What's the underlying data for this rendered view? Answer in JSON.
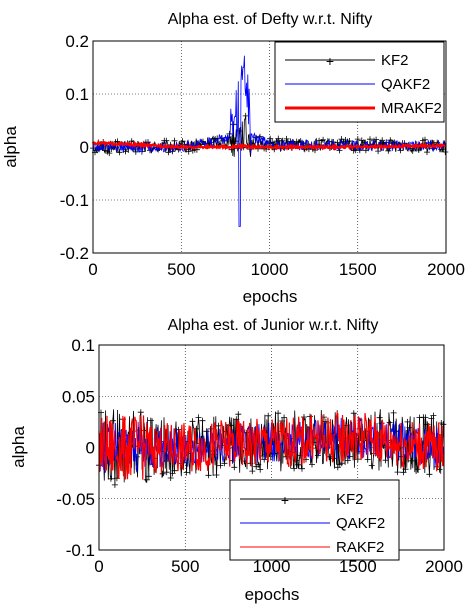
{
  "chart_data": [
    {
      "type": "line",
      "title": "Alpha est. of Defty w.r.t. Nifty",
      "xlabel": "epochs",
      "ylabel": "alpha",
      "xlim": [
        0,
        2000
      ],
      "ylim": [
        -0.2,
        0.2
      ],
      "xticks": [
        "0",
        "500",
        "1000",
        "1500",
        "2000"
      ],
      "yticks": [
        "0.2",
        "0.1",
        "0",
        "-0.1",
        "-0.2"
      ],
      "grid": true,
      "legend_position": "top-right",
      "series": [
        {
          "name": "KF2",
          "color": "#000000",
          "marker": "plus",
          "x": [
            0,
            500,
            800,
            850,
            900,
            1000,
            1500,
            2000
          ],
          "values": [
            0.0,
            0.0,
            0.015,
            0.03,
            0.01,
            0.005,
            0.003,
            0.002
          ],
          "noise_envelope": 0.012
        },
        {
          "name": "QAKF2",
          "color": "#0000ff",
          "x": [
            0,
            500,
            800,
            850,
            900,
            1000,
            1500,
            2000
          ],
          "values": [
            0.0,
            0.0,
            0.02,
            0.15,
            0.02,
            0.005,
            0.003,
            0.002
          ],
          "noise_envelope": 0.01
        },
        {
          "name": "MRAKF2",
          "color": "#ff0000",
          "x": [
            0,
            500,
            800,
            850,
            900,
            1000,
            1500,
            2000
          ],
          "values": [
            0.008,
            0.0,
            0.0,
            0.002,
            0.0,
            0.0,
            0.0,
            0.003
          ]
        }
      ]
    },
    {
      "type": "line",
      "title": "Alpha est. of Junior w.r.t. Nifty",
      "xlabel": "epochs",
      "ylabel": "alpha",
      "xlim": [
        0,
        2000
      ],
      "ylim": [
        -0.1,
        0.1
      ],
      "xticks": [
        "0",
        "500",
        "1000",
        "1500",
        "2000"
      ],
      "yticks": [
        "0.1",
        "0.05",
        "0",
        "-0.05",
        "-0.1"
      ],
      "grid": true,
      "legend_position": "bottom-center",
      "series": [
        {
          "name": "KF2",
          "color": "#000000",
          "marker": "plus",
          "x": [
            0,
            250,
            500,
            1000,
            1500,
            2000
          ],
          "values": [
            0.0,
            0.0,
            0.0,
            0.005,
            0.01,
            0.0
          ],
          "noise_envelope": 0.03
        },
        {
          "name": "QAKF2",
          "color": "#0000ff",
          "x": [
            0,
            250,
            500,
            1000,
            1500,
            2000
          ],
          "values": [
            0.0,
            0.0,
            0.0,
            0.005,
            0.01,
            0.0
          ],
          "noise_envelope": 0.02
        },
        {
          "name": "RAKF2",
          "color": "#ff0000",
          "x": [
            0,
            250,
            500,
            1000,
            1500,
            2000
          ],
          "values": [
            0.0,
            0.0,
            0.0,
            0.005,
            0.01,
            0.0
          ],
          "noise_envelope": 0.025
        }
      ]
    }
  ]
}
